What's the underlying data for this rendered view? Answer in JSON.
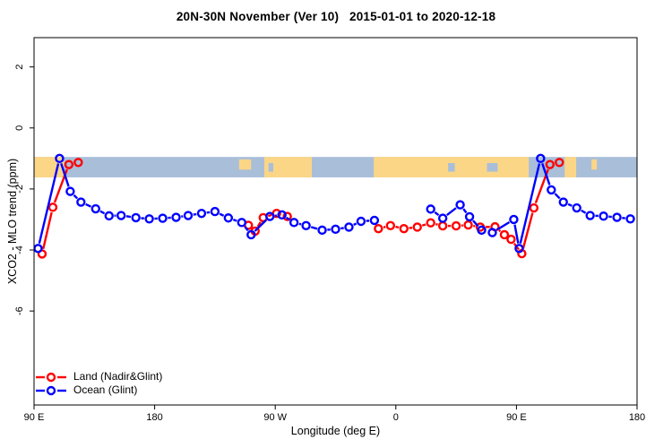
{
  "title": "20N-30N November (Ver 10)   2015-01-01 to 2020-12-18",
  "legend": {
    "items": [
      {
        "label": "Land (Nadir&Glint)",
        "color": "#ff0000"
      },
      {
        "label": "Ocean (Glint)",
        "color": "#0000ff"
      }
    ]
  },
  "chart_data": {
    "type": "line",
    "title": "20N-30N November (Ver 10)   2015-01-01 to 2020-12-18",
    "xlabel": "Longitude (deg E)",
    "ylabel": "XCO2 - MLO trend (ppm)",
    "xlim": [
      90,
      540
    ],
    "ylim": [
      -9.08,
      2.96
    ],
    "grid": false,
    "legend_position": "bottom-left-inside",
    "x_ticks": [
      {
        "value": 90,
        "label": "90 E"
      },
      {
        "value": 180,
        "label": "180"
      },
      {
        "value": 270,
        "label": "90 W"
      },
      {
        "value": 360,
        "label": "0"
      },
      {
        "value": 450,
        "label": "90 E"
      },
      {
        "value": 540,
        "label": "180"
      }
    ],
    "y_ticks": [
      {
        "value": 2,
        "label": "2"
      },
      {
        "value": 0,
        "label": "0"
      },
      {
        "value": -2,
        "label": "-2"
      },
      {
        "value": -4,
        "label": "-4"
      },
      {
        "value": -6,
        "label": "-6"
      }
    ],
    "map_band": {
      "comment_visible_content": "horizontal world-map strip across plot showing 20N-30N latitudes",
      "v_top": -0.95,
      "v_bottom": -1.62,
      "ocean_color": "#a9bed9",
      "land_color": "#fbd687",
      "land_segments": [
        {
          "lon0": 90,
          "lon1": 112.2,
          "thin": false
        },
        {
          "lon0": 243,
          "lon1": 252,
          "thin": true
        },
        {
          "lon0": 261.8,
          "lon1": 297.3,
          "thin": false
        },
        {
          "lon0": 343.5,
          "lon1": 459.2,
          "thin": false
        },
        {
          "lon0": 486,
          "lon1": 494.6,
          "thin": false
        },
        {
          "lon0": 506,
          "lon1": 510,
          "thin": true
        }
      ],
      "ocean_speckles": [
        {
          "lon0": 265,
          "lon1": 268.5
        },
        {
          "lon0": 399,
          "lon1": 404
        },
        {
          "lon0": 428,
          "lon1": 436
        }
      ]
    },
    "series": [
      {
        "name": "Land (Nadir&Glint)",
        "color": "#ff0000",
        "marker": "open-circle",
        "segments": [
          [
            [
              96,
              -4.13
            ],
            [
              104,
              -2.6
            ],
            [
              116,
              -1.2
            ],
            [
              123,
              -1.13
            ]
          ],
          [
            [
              250,
              -3.19
            ],
            [
              255,
              -3.38
            ],
            [
              261,
              -2.94
            ],
            [
              271,
              -2.8
            ],
            [
              279,
              -2.9
            ]
          ],
          [
            [
              347,
              -3.3
            ],
            [
              356,
              -3.2
            ],
            [
              366,
              -3.3
            ],
            [
              376,
              -3.25
            ],
            [
              386,
              -3.11
            ],
            [
              395,
              -3.21
            ],
            [
              405,
              -3.21
            ],
            [
              414,
              -3.18
            ],
            [
              423,
              -3.25
            ],
            [
              434,
              -3.24
            ],
            [
              441,
              -3.5
            ],
            [
              446,
              -3.65
            ],
            [
              454,
              -4.12
            ],
            [
              463,
              -2.62
            ],
            [
              475,
              -1.2
            ],
            [
              482,
              -1.13
            ]
          ]
        ]
      },
      {
        "name": "Ocean (Glint)",
        "color": "#0000ff",
        "marker": "open-circle",
        "segments": [
          [
            [
              93,
              -3.95
            ],
            [
              109,
              -1.0
            ],
            [
              117,
              -2.08
            ],
            [
              125,
              -2.43
            ],
            [
              136,
              -2.65
            ],
            [
              146,
              -2.88
            ],
            [
              155,
              -2.87
            ],
            [
              166,
              -2.94
            ],
            [
              176,
              -2.98
            ],
            [
              186,
              -2.96
            ],
            [
              196,
              -2.93
            ],
            [
              205,
              -2.87
            ],
            [
              215,
              -2.8
            ],
            [
              225,
              -2.74
            ],
            [
              235,
              -2.95
            ],
            [
              245,
              -3.1
            ],
            [
              252,
              -3.5
            ],
            [
              266,
              -2.9
            ],
            [
              275,
              -2.85
            ],
            [
              284,
              -3.1
            ],
            [
              293,
              -3.2
            ],
            [
              305,
              -3.35
            ],
            [
              315,
              -3.32
            ],
            [
              325,
              -3.25
            ],
            [
              334,
              -3.06
            ],
            [
              344,
              -3.03
            ]
          ],
          [
            [
              386,
              -2.66
            ],
            [
              395,
              -2.96
            ],
            [
              408,
              -2.52
            ],
            [
              415,
              -2.91
            ],
            [
              424,
              -3.35
            ],
            [
              432,
              -3.43
            ],
            [
              448,
              -3.0
            ],
            [
              452,
              -3.95
            ],
            [
              468,
              -1.0
            ],
            [
              476,
              -2.03
            ],
            [
              485,
              -2.43
            ],
            [
              495,
              -2.62
            ],
            [
              505,
              -2.87
            ],
            [
              515,
              -2.89
            ],
            [
              525,
              -2.93
            ],
            [
              535,
              -2.98
            ]
          ]
        ]
      }
    ]
  }
}
